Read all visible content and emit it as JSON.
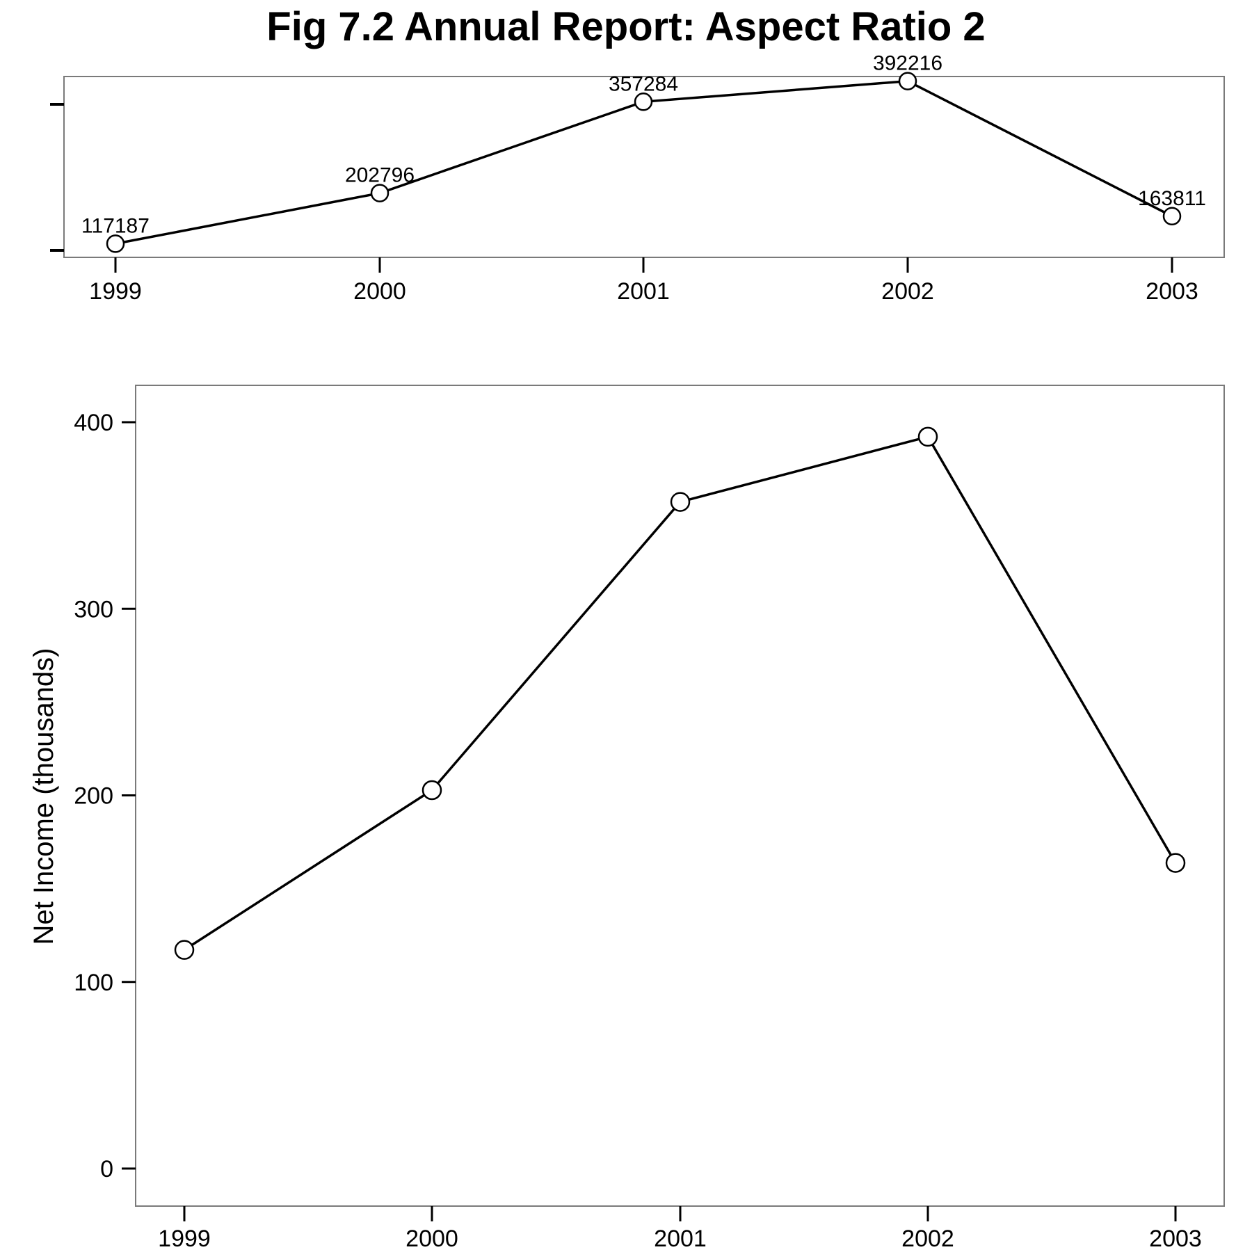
{
  "title": "Fig 7.2 Annual Report: Aspect Ratio 2",
  "chart_data": [
    {
      "type": "line",
      "panel": "top",
      "x": [
        "1999",
        "2000",
        "2001",
        "2002",
        "2003"
      ],
      "values": [
        117187,
        202796,
        357284,
        392216,
        163811
      ],
      "data_labels": [
        "117187",
        "202796",
        "357284",
        "392216",
        "163811"
      ],
      "xlabel": "",
      "ylabel": "",
      "y_tick_labels_shown": false,
      "grid": false,
      "marker": "open-circle",
      "line_color": "#000000"
    },
    {
      "type": "line",
      "panel": "bottom",
      "x": [
        "1999",
        "2000",
        "2001",
        "2002",
        "2003"
      ],
      "values": [
        117.187,
        202.796,
        357.284,
        392.216,
        163.811
      ],
      "xlabel": "",
      "ylabel": "Net Income (thousands)",
      "y_ticks": [
        0,
        100,
        200,
        300,
        400
      ],
      "y_tick_labels": [
        "0",
        "100",
        "200",
        "300",
        "400"
      ],
      "ylim": [
        -19,
        420
      ],
      "grid": false,
      "marker": "open-circle",
      "line_color": "#000000"
    }
  ]
}
